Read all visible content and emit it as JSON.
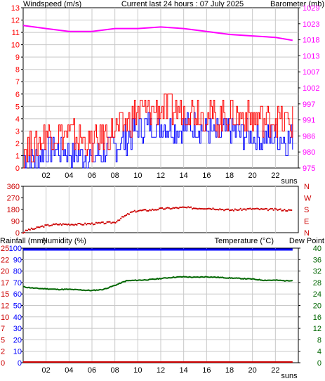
{
  "header": {
    "left_title": "Windspeed (m/s)",
    "center_title": "Current last 24 hours : 07 July 2025",
    "right_title": "Barometer (mb)"
  },
  "colors": {
    "axis": "#000000",
    "grid": "#c8c8c8",
    "wind_title": "#ff0000",
    "wind_avg": "#0000ff",
    "wind_gust": "#ff0000",
    "barometer": "#ff00ff",
    "direction": "#cc0000",
    "rain": "#cc0000",
    "humidity": "#0000ff",
    "temperature": "#006600",
    "dewpoint": "#ff00ff",
    "rain_axis": "#cc0000",
    "hum_axis": "#0000ff",
    "temp_axis": "#006600"
  },
  "x_ticks": [
    "02",
    "04",
    "06",
    "08",
    "10",
    "12",
    "14",
    "16",
    "18",
    "20",
    "22"
  ],
  "x_unit_label": "suns",
  "wind_panel": {
    "left_axis": [
      "0",
      "1",
      "2",
      "3",
      "4",
      "5",
      "6",
      "7",
      "8",
      "9",
      "10",
      "11",
      "12",
      "13"
    ],
    "right_axis": [
      "975",
      "980",
      "986",
      "991",
      "997",
      "1002",
      "1007",
      "1013",
      "1018",
      "1023",
      "1029"
    ]
  },
  "direction_panel": {
    "left_axis": [
      "0",
      "90",
      "180",
      "270",
      "360"
    ],
    "right_axis": [
      "N",
      "E",
      "S",
      "W",
      "N"
    ]
  },
  "bottom_panel": {
    "titles": {
      "rainfall": "Rainfall (mm)",
      "humidity": "Humidity (%)",
      "temperature": "Temperature (°C)",
      "dewpoint": "Dew Point"
    },
    "rain_axis": [
      "0",
      "2",
      "5",
      "7",
      "10",
      "12",
      "15",
      "17",
      "20",
      "22",
      "25"
    ],
    "humidity_axis": [
      "0",
      "10",
      "20",
      "30",
      "40",
      "50",
      "60",
      "70",
      "80",
      "90",
      "100"
    ],
    "temp_axis": [
      "0",
      "4",
      "8",
      "12",
      "16",
      "20",
      "24",
      "28",
      "32",
      "36",
      "40"
    ]
  },
  "chart_data": [
    {
      "type": "line",
      "xlabel": "suns",
      "ylabel": "Windspeed (m/s)",
      "ylim": [
        0,
        13
      ],
      "x": [
        0,
        1,
        2,
        3,
        4,
        5,
        6,
        7,
        8,
        9,
        10,
        11,
        12,
        13,
        14,
        15,
        16,
        17,
        18,
        19,
        20,
        21,
        22,
        23,
        23.5
      ],
      "series": [
        {
          "name": "Windspeed (m/s)",
          "axis": "left",
          "values": [
            1.0,
            0.6,
            1.4,
            1.6,
            1.2,
            1.0,
            0.8,
            1.2,
            1.8,
            2.4,
            3.2,
            3.4,
            3.4,
            3.2,
            3.2,
            3.4,
            3.0,
            2.6,
            3.0,
            2.8,
            2.6,
            2.4,
            2.6,
            2.2,
            2.4
          ]
        },
        {
          "name": "Gust",
          "axis": "left",
          "values": [
            1.6,
            1.6,
            2.8,
            2.8,
            2.6,
            2.4,
            1.8,
            2.6,
            3.0,
            3.6,
            4.6,
            4.6,
            4.8,
            4.6,
            4.6,
            4.8,
            4.4,
            4.0,
            4.4,
            4.2,
            4.0,
            3.8,
            4.0,
            3.6,
            3.6
          ]
        }
      ]
    },
    {
      "type": "line",
      "ylabel": "Barometer (mb)",
      "ylim": [
        975,
        1029
      ],
      "x": [
        0,
        2,
        4,
        6,
        8,
        10,
        12,
        14,
        16,
        18,
        20,
        22,
        23.5
      ],
      "series": [
        {
          "name": "Barometer (mb)",
          "values": [
            1023,
            1022,
            1021,
            1021,
            1022,
            1022,
            1022.5,
            1022,
            1021,
            1020,
            1019.5,
            1019,
            1018
          ]
        }
      ]
    },
    {
      "type": "scatter",
      "ylabel": "Wind direction (deg)",
      "ylim": [
        0,
        360
      ],
      "x": [
        0,
        0.5,
        1,
        1.5,
        2,
        3,
        4,
        5,
        6,
        7,
        8,
        8.5,
        9,
        9.5,
        10,
        11,
        12,
        13,
        14,
        15,
        16,
        17,
        18,
        19,
        20,
        21,
        22,
        23,
        23.5
      ],
      "series": [
        {
          "name": "Direction",
          "values": [
            0,
            25,
            30,
            45,
            55,
            65,
            65,
            65,
            70,
            75,
            80,
            110,
            135,
            160,
            170,
            175,
            185,
            190,
            195,
            190,
            190,
            185,
            175,
            180,
            185,
            180,
            180,
            175,
            170
          ]
        }
      ]
    },
    {
      "type": "line",
      "ylabel": "Humidity (%)",
      "ylim": [
        0,
        100
      ],
      "x": [
        0,
        23.5
      ],
      "series": [
        {
          "name": "Humidity (%)",
          "values": [
            100,
            100
          ]
        }
      ]
    },
    {
      "type": "line",
      "ylabel": "Temperature (°C)",
      "ylim": [
        0,
        40
      ],
      "x": [
        0,
        1,
        2,
        3,
        4,
        5,
        6,
        7,
        8,
        9,
        10,
        11,
        12,
        13,
        14,
        15,
        16,
        17,
        18,
        19,
        20,
        21,
        22,
        23,
        23.5
      ],
      "series": [
        {
          "name": "Temperature (°C)",
          "values": [
            26.5,
            26,
            25.8,
            25.6,
            25.6,
            25.4,
            25.2,
            25.6,
            27,
            28.6,
            28.8,
            29,
            29.4,
            29.8,
            30,
            29.8,
            30,
            29.8,
            29.6,
            29.4,
            29.2,
            28.8,
            28.8,
            28.6,
            28.8
          ]
        }
      ]
    },
    {
      "type": "line",
      "ylabel": "Rainfall (mm)",
      "ylim": [
        0,
        25
      ],
      "x": [
        0,
        23.5
      ],
      "series": [
        {
          "name": "Rainfall (mm)",
          "values": [
            0,
            0
          ]
        }
      ]
    }
  ]
}
